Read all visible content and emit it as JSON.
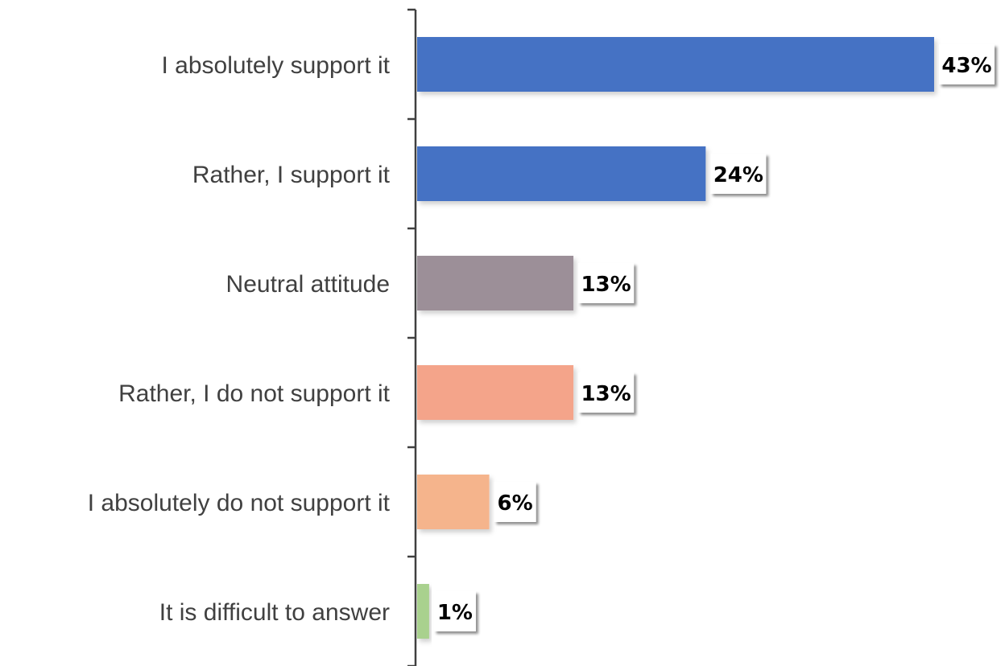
{
  "chart_data": {
    "type": "bar",
    "orientation": "horizontal",
    "categories": [
      "I absolutely support it",
      "Rather, I support it",
      "Neutral attitude",
      "Rather, I do not support it",
      "I absolutely do not support it",
      "It is difficult to answer"
    ],
    "values": [
      43,
      24,
      13,
      13,
      6,
      1
    ],
    "value_labels": [
      "43%",
      "24%",
      "13%",
      "13%",
      "6%",
      "1%"
    ],
    "colors": [
      "#4472c4",
      "#4472c4",
      "#9c8f98",
      "#f4a48a",
      "#f5b48c",
      "#a9d18e"
    ],
    "title": "",
    "xlabel": "",
    "ylabel": "",
    "xlim": [
      0,
      43
    ],
    "grid": false,
    "legend": "none"
  }
}
